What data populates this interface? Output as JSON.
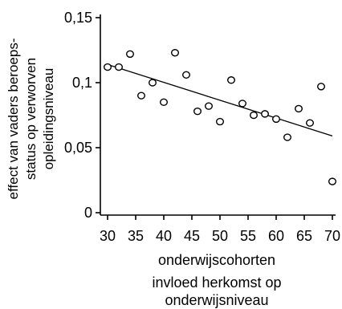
{
  "chart_data": {
    "type": "scatter",
    "title": "",
    "ylabel_lines": [
      "effect van vaders beroeps-",
      "status op verworven",
      "opleidingsniveau"
    ],
    "xlabel": "onderwijscohorten",
    "caption_lines": [
      "invloed herkomst op",
      "onderwijsniveau"
    ],
    "xlim": [
      30,
      70
    ],
    "ylim": [
      0,
      0.15
    ],
    "x_ticks": [
      30,
      35,
      40,
      45,
      50,
      55,
      60,
      65,
      70
    ],
    "x_tick_labels": [
      "30",
      "35",
      "40",
      "45",
      "50",
      "55",
      "60",
      "65",
      "70"
    ],
    "y_ticks": [
      0,
      0.05,
      0.1,
      0.15
    ],
    "y_tick_labels": [
      "0",
      "0,05",
      "0,1",
      "0,15"
    ],
    "grid": false,
    "points": [
      {
        "x": 30,
        "y": 0.112
      },
      {
        "x": 32,
        "y": 0.112
      },
      {
        "x": 34,
        "y": 0.122
      },
      {
        "x": 36,
        "y": 0.09
      },
      {
        "x": 38,
        "y": 0.1
      },
      {
        "x": 40,
        "y": 0.085
      },
      {
        "x": 42,
        "y": 0.123
      },
      {
        "x": 44,
        "y": 0.106
      },
      {
        "x": 46,
        "y": 0.078
      },
      {
        "x": 48,
        "y": 0.082
      },
      {
        "x": 50,
        "y": 0.07
      },
      {
        "x": 52,
        "y": 0.102
      },
      {
        "x": 54,
        "y": 0.084
      },
      {
        "x": 56,
        "y": 0.075
      },
      {
        "x": 58,
        "y": 0.076
      },
      {
        "x": 60,
        "y": 0.072
      },
      {
        "x": 62,
        "y": 0.058
      },
      {
        "x": 64,
        "y": 0.08
      },
      {
        "x": 66,
        "y": 0.069
      },
      {
        "x": 68,
        "y": 0.097
      },
      {
        "x": 70,
        "y": 0.024
      }
    ],
    "trend_line": {
      "x": [
        30,
        70
      ],
      "y": [
        0.114,
        0.059
      ]
    }
  }
}
